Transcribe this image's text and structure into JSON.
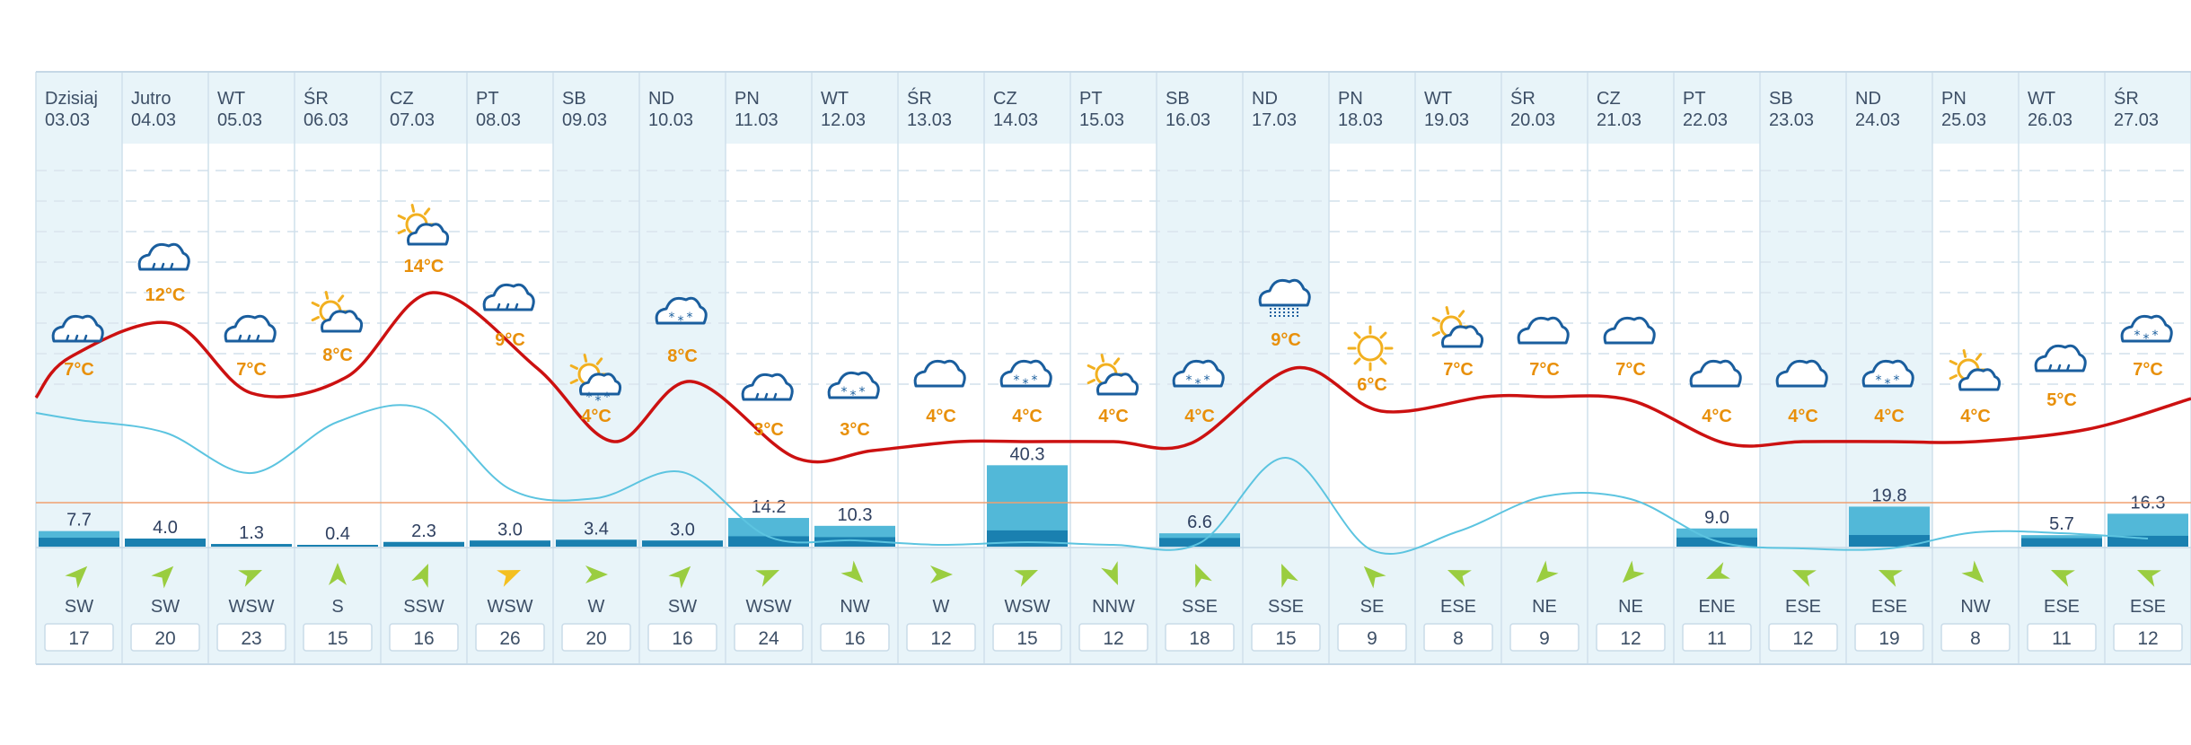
{
  "chart_data": {
    "type": "line",
    "days": [
      {
        "day": "Dzisiaj",
        "date": "03.03",
        "weekend": true
      },
      {
        "day": "Jutro",
        "date": "04.03",
        "weekend": false
      },
      {
        "day": "WT",
        "date": "05.03",
        "weekend": false
      },
      {
        "day": "ŚR",
        "date": "06.03",
        "weekend": false
      },
      {
        "day": "CZ",
        "date": "07.03",
        "weekend": false
      },
      {
        "day": "PT",
        "date": "08.03",
        "weekend": false
      },
      {
        "day": "SB",
        "date": "09.03",
        "weekend": true
      },
      {
        "day": "ND",
        "date": "10.03",
        "weekend": true
      },
      {
        "day": "PN",
        "date": "11.03",
        "weekend": false
      },
      {
        "day": "WT",
        "date": "12.03",
        "weekend": false
      },
      {
        "day": "ŚR",
        "date": "13.03",
        "weekend": false
      },
      {
        "day": "CZ",
        "date": "14.03",
        "weekend": false
      },
      {
        "day": "PT",
        "date": "15.03",
        "weekend": false
      },
      {
        "day": "SB",
        "date": "16.03",
        "weekend": true
      },
      {
        "day": "ND",
        "date": "17.03",
        "weekend": true
      },
      {
        "day": "PN",
        "date": "18.03",
        "weekend": false
      },
      {
        "day": "WT",
        "date": "19.03",
        "weekend": false
      },
      {
        "day": "ŚR",
        "date": "20.03",
        "weekend": false
      },
      {
        "day": "CZ",
        "date": "21.03",
        "weekend": false
      },
      {
        "day": "PT",
        "date": "22.03",
        "weekend": false
      },
      {
        "day": "SB",
        "date": "23.03",
        "weekend": true
      },
      {
        "day": "ND",
        "date": "24.03",
        "weekend": true
      },
      {
        "day": "PN",
        "date": "25.03",
        "weekend": false
      },
      {
        "day": "WT",
        "date": "26.03",
        "weekend": false
      },
      {
        "day": "ŚR",
        "date": "27.03",
        "weekend": false
      }
    ],
    "weather_icons": [
      "cloud-rain-icon",
      "cloud-rain-icon",
      "cloud-rain-icon",
      "sun-cloud-icon",
      "sun-cloud-icon",
      "cloud-rain-icon",
      "sun-cloud-snow-icon",
      "cloud-snow-icon",
      "cloud-rain-icon",
      "cloud-snow-icon",
      "cloud-icon",
      "cloud-snow-icon",
      "sun-cloud-icon",
      "cloud-snow-icon",
      "cloud-heavy-snow-icon",
      "sun-icon",
      "sun-cloud-icon",
      "cloud-icon",
      "cloud-icon",
      "cloud-icon",
      "cloud-icon",
      "cloud-snow-icon",
      "sun-cloud-icon",
      "cloud-rain-icon",
      "cloud-snow-icon"
    ],
    "temperature_labels": [
      "7°C",
      "12°C",
      "7°C",
      "8°C",
      "14°C",
      "9°C",
      "4°C",
      "8°C",
      "3°C",
      "3°C",
      "4°C",
      "4°C",
      "4°C",
      "4°C",
      "9°C",
      "6°C",
      "7°C",
      "7°C",
      "7°C",
      "4°C",
      "4°C",
      "4°C",
      "4°C",
      "5°C",
      "7°C"
    ],
    "series": [
      {
        "values": [
          7,
          12,
          7,
          8,
          14,
          9,
          4,
          8,
          3,
          3,
          4,
          4,
          4,
          4,
          9,
          6,
          7,
          7,
          7,
          4,
          4,
          4,
          4,
          5,
          7
        ],
        "color": "#cc1111"
      }
    ],
    "secondary_line": {
      "color": "#5cc4e0"
    },
    "threshold_line_color": "#f0a070",
    "precipitation": [
      7.7,
      4.0,
      1.3,
      0.4,
      2.3,
      3.0,
      3.4,
      3.0,
      14.2,
      10.3,
      null,
      40.3,
      null,
      6.6,
      null,
      null,
      null,
      null,
      null,
      9.0,
      null,
      19.8,
      null,
      5.7,
      16.3
    ],
    "precipitation_labels": [
      "7.7",
      "4.0",
      "1.3",
      "0.4",
      "2.3",
      "3.0",
      "3.4",
      "3.0",
      "14.2",
      "10.3",
      "",
      "40.3",
      "",
      "6.6",
      "",
      "",
      "",
      "",
      "",
      "9.0",
      "",
      "19.8",
      "",
      "5.7",
      "16.3"
    ],
    "wind_direction": [
      "SW",
      "SW",
      "WSW",
      "S",
      "SSW",
      "WSW",
      "W",
      "SW",
      "WSW",
      "NW",
      "W",
      "WSW",
      "NNW",
      "SSE",
      "SSE",
      "SE",
      "ESE",
      "NE",
      "NE",
      "ENE",
      "ESE",
      "ESE",
      "NW",
      "ESE",
      "ESE"
    ],
    "wind_speed": [
      "17",
      "20",
      "23",
      "15",
      "16",
      "26",
      "20",
      "16",
      "24",
      "16",
      "12",
      "15",
      "12",
      "18",
      "15",
      "9",
      "8",
      "9",
      "12",
      "11",
      "12",
      "19",
      "8",
      "11",
      "12"
    ],
    "colors": {
      "header_bg": "#e8f4f9",
      "weekend_bg": "#e8f4f9",
      "grid": "#dde8f0",
      "temp_text": "#e8900a",
      "icon": "#1a5e9e",
      "sun": "#f2b020",
      "bar": "#52b8d8",
      "bar_dark": "#1a80b0",
      "arrow": "#9acd40",
      "arrow_strong": "#f4c020"
    }
  }
}
